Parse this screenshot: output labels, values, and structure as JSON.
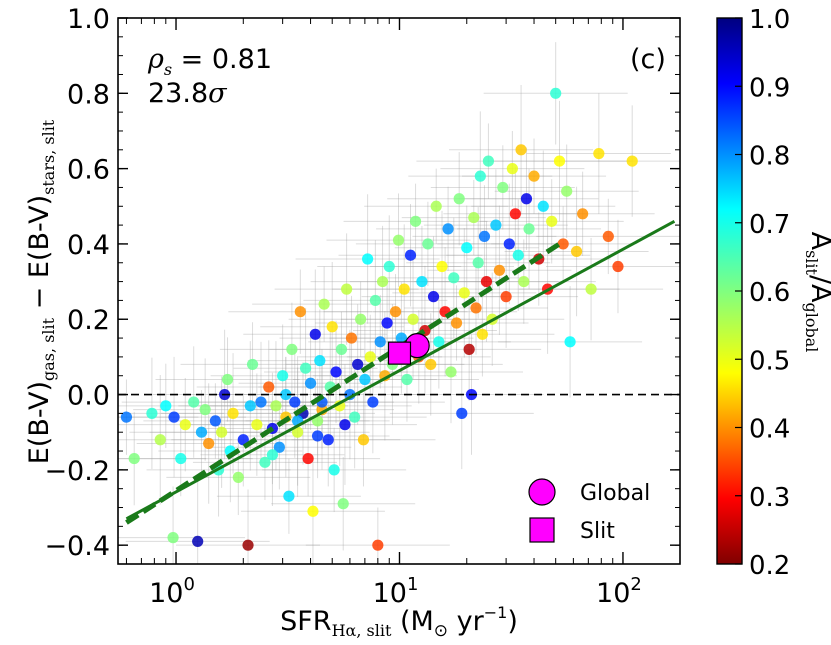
{
  "chart_data": {
    "type": "scatter",
    "panel_label": "(c)",
    "xscale": "log",
    "xlim": [
      0.55,
      180
    ],
    "ylim": [
      -0.45,
      1.0
    ],
    "xticks": [
      1,
      10,
      100
    ],
    "xtick_labels": [
      {
        "base": "10",
        "exp": "0"
      },
      {
        "base": "10",
        "exp": "1"
      },
      {
        "base": "10",
        "exp": "2"
      }
    ],
    "yticks": [
      "−0.4",
      "−0.2",
      "0.0",
      "0.2",
      "0.4",
      "0.6",
      "0.8",
      "1.0"
    ],
    "ytick_values": [
      -0.4,
      -0.2,
      0.0,
      0.2,
      0.4,
      0.6,
      0.8,
      1.0
    ],
    "xlabel": {
      "main": "SFR",
      "sub": "Hα, slit",
      "units": " (M",
      "sun": "⊙",
      "units2": " yr",
      "exp": "−1",
      "close": ")"
    },
    "ylabel": {
      "p1": "E(B-V)",
      "s1": "gas, slit",
      "p2": " − E(B-V)",
      "s2": "stars, slit"
    },
    "colorbar": {
      "label_main": "A",
      "label_sub1": "slit",
      "label_mid": "/A",
      "label_sub2": "global",
      "range": [
        0.2,
        1.0
      ],
      "ticks": [
        "0.2",
        "0.3",
        "0.4",
        "0.5",
        "0.6",
        "0.7",
        "0.8",
        "0.9",
        "1.0"
      ],
      "tick_values": [
        0.2,
        0.3,
        0.4,
        0.5,
        0.6,
        0.7,
        0.8,
        0.9,
        1.0
      ],
      "colormap": "jet"
    },
    "annotations": {
      "rho_symbol": "ρ",
      "rho_sub": "s",
      "rho_value": " = 0.81",
      "sigma_value": "23.8",
      "sigma_symbol": "σ"
    },
    "zero_line": 0.0,
    "fit_solid": {
      "x": [
        0.6,
        170
      ],
      "y": [
        -0.33,
        0.46
      ],
      "color": "#1a7a1a"
    },
    "fit_dashed": {
      "x": [
        0.6,
        52
      ],
      "y": [
        -0.34,
        0.4
      ],
      "color": "#1a7a1a"
    },
    "legend": [
      {
        "marker": "circle",
        "label": "Global",
        "color": "#ff00ff"
      },
      {
        "marker": "square",
        "label": "Slit",
        "color": "#ff00ff"
      }
    ],
    "special_points": [
      {
        "name": "global",
        "x": 12,
        "y": 0.13,
        "marker": "circle",
        "color": "#ff00ff"
      },
      {
        "name": "slit",
        "x": 10,
        "y": 0.11,
        "marker": "square",
        "color": "#ff00ff"
      }
    ],
    "points": [
      {
        "x": 0.6,
        "y": -0.06,
        "c": 0.82
      },
      {
        "x": 0.65,
        "y": -0.17,
        "c": 0.6
      },
      {
        "x": 0.78,
        "y": -0.05,
        "c": 0.68
      },
      {
        "x": 0.85,
        "y": -0.12,
        "c": 0.55
      },
      {
        "x": 0.9,
        "y": -0.03,
        "c": 0.72
      },
      {
        "x": 0.97,
        "y": -0.38,
        "c": 0.6
      },
      {
        "x": 0.98,
        "y": -0.06,
        "c": 0.86
      },
      {
        "x": 1.05,
        "y": -0.17,
        "c": 0.7
      },
      {
        "x": 1.1,
        "y": -0.08,
        "c": 0.5
      },
      {
        "x": 1.2,
        "y": -0.02,
        "c": 0.64
      },
      {
        "x": 1.25,
        "y": -0.39,
        "c": 0.96
      },
      {
        "x": 1.3,
        "y": -0.1,
        "c": 0.78
      },
      {
        "x": 1.35,
        "y": -0.04,
        "c": 0.6
      },
      {
        "x": 1.4,
        "y": -0.13,
        "c": 0.4
      },
      {
        "x": 1.5,
        "y": -0.07,
        "c": 0.84
      },
      {
        "x": 1.55,
        "y": -0.2,
        "c": 0.68
      },
      {
        "x": 1.6,
        "y": -0.1,
        "c": 0.52
      },
      {
        "x": 1.65,
        "y": 0.0,
        "c": 0.94
      },
      {
        "x": 1.7,
        "y": 0.04,
        "c": 0.6
      },
      {
        "x": 1.75,
        "y": -0.15,
        "c": 0.72
      },
      {
        "x": 1.8,
        "y": -0.05,
        "c": 0.46
      },
      {
        "x": 1.9,
        "y": -0.22,
        "c": 0.58
      },
      {
        "x": 2.0,
        "y": -0.12,
        "c": 0.88
      },
      {
        "x": 2.1,
        "y": -0.4,
        "c": 0.22
      },
      {
        "x": 2.15,
        "y": -0.03,
        "c": 0.76
      },
      {
        "x": 2.2,
        "y": 0.08,
        "c": 0.62
      },
      {
        "x": 2.3,
        "y": -0.08,
        "c": 0.5
      },
      {
        "x": 2.4,
        "y": -0.02,
        "c": 0.82
      },
      {
        "x": 2.5,
        "y": -0.18,
        "c": 0.66
      },
      {
        "x": 2.6,
        "y": 0.02,
        "c": 0.36
      },
      {
        "x": 2.7,
        "y": -0.09,
        "c": 0.92
      },
      {
        "x": 2.8,
        "y": -0.03,
        "c": 0.56
      },
      {
        "x": 2.9,
        "y": -0.14,
        "c": 0.8
      },
      {
        "x": 3.0,
        "y": 0.05,
        "c": 0.7
      },
      {
        "x": 3.1,
        "y": -0.06,
        "c": 0.44
      },
      {
        "x": 3.2,
        "y": -0.27,
        "c": 0.74
      },
      {
        "x": 3.3,
        "y": 0.12,
        "c": 0.6
      },
      {
        "x": 3.4,
        "y": -0.02,
        "c": 0.86
      },
      {
        "x": 3.5,
        "y": -0.1,
        "c": 0.52
      },
      {
        "x": 3.6,
        "y": 0.22,
        "c": 0.4
      },
      {
        "x": 3.7,
        "y": -0.05,
        "c": 0.96
      },
      {
        "x": 3.8,
        "y": 0.07,
        "c": 0.66
      },
      {
        "x": 3.9,
        "y": -0.17,
        "c": 0.3
      },
      {
        "x": 4.0,
        "y": 0.03,
        "c": 0.8
      },
      {
        "x": 4.1,
        "y": -0.31,
        "c": 0.48
      },
      {
        "x": 4.2,
        "y": 0.16,
        "c": 0.92
      },
      {
        "x": 4.3,
        "y": -0.07,
        "c": 0.58
      },
      {
        "x": 4.4,
        "y": 0.09,
        "c": 0.74
      },
      {
        "x": 4.5,
        "y": -0.04,
        "c": 0.42
      },
      {
        "x": 4.6,
        "y": 0.24,
        "c": 0.56
      },
      {
        "x": 4.8,
        "y": -0.12,
        "c": 0.88
      },
      {
        "x": 4.9,
        "y": 0.02,
        "c": 0.64
      },
      {
        "x": 5.0,
        "y": 0.18,
        "c": 0.46
      },
      {
        "x": 5.1,
        "y": -0.2,
        "c": 0.7
      },
      {
        "x": 5.2,
        "y": 0.06,
        "c": 0.9
      },
      {
        "x": 5.4,
        "y": -0.03,
        "c": 0.5
      },
      {
        "x": 5.5,
        "y": 0.12,
        "c": 0.62
      },
      {
        "x": 5.6,
        "y": -0.29,
        "c": 0.6
      },
      {
        "x": 5.8,
        "y": 0.28,
        "c": 0.54
      },
      {
        "x": 6.0,
        "y": 0.0,
        "c": 0.82
      },
      {
        "x": 6.1,
        "y": 0.15,
        "c": 0.38
      },
      {
        "x": 6.3,
        "y": -0.06,
        "c": 0.66
      },
      {
        "x": 6.5,
        "y": 0.08,
        "c": 0.94
      },
      {
        "x": 6.7,
        "y": 0.2,
        "c": 0.58
      },
      {
        "x": 6.9,
        "y": -0.12,
        "c": 0.44
      },
      {
        "x": 7.0,
        "y": 0.04,
        "c": 0.76
      },
      {
        "x": 7.2,
        "y": 0.36,
        "c": 0.72
      },
      {
        "x": 7.4,
        "y": 0.1,
        "c": 0.5
      },
      {
        "x": 7.6,
        "y": -0.02,
        "c": 0.86
      },
      {
        "x": 7.8,
        "y": 0.25,
        "c": 0.64
      },
      {
        "x": 8.0,
        "y": -0.4,
        "c": 0.34
      },
      {
        "x": 8.2,
        "y": 0.14,
        "c": 0.8
      },
      {
        "x": 8.4,
        "y": 0.3,
        "c": 0.56
      },
      {
        "x": 8.6,
        "y": 0.05,
        "c": 0.42
      },
      {
        "x": 8.8,
        "y": 0.19,
        "c": 0.9
      },
      {
        "x": 9.0,
        "y": 0.34,
        "c": 0.68
      },
      {
        "x": 9.3,
        "y": 0.08,
        "c": 0.6
      },
      {
        "x": 9.6,
        "y": 0.22,
        "c": 0.4
      },
      {
        "x": 9.9,
        "y": 0.41,
        "c": 0.58
      },
      {
        "x": 10.2,
        "y": 0.15,
        "c": 0.78
      },
      {
        "x": 10.5,
        "y": 0.28,
        "c": 0.46
      },
      {
        "x": 10.8,
        "y": 0.04,
        "c": 0.64
      },
      {
        "x": 11.2,
        "y": 0.37,
        "c": 0.88
      },
      {
        "x": 11.5,
        "y": 0.2,
        "c": 0.52
      },
      {
        "x": 11.8,
        "y": 0.46,
        "c": 0.6
      },
      {
        "x": 12.2,
        "y": 0.1,
        "c": 0.36
      },
      {
        "x": 12.6,
        "y": 0.3,
        "c": 0.74
      },
      {
        "x": 13.0,
        "y": 0.17,
        "c": 0.26
      },
      {
        "x": 13.4,
        "y": 0.4,
        "c": 0.62
      },
      {
        "x": 13.8,
        "y": 0.08,
        "c": 0.44
      },
      {
        "x": 14.2,
        "y": 0.26,
        "c": 0.92
      },
      {
        "x": 14.6,
        "y": 0.5,
        "c": 0.56
      },
      {
        "x": 15.0,
        "y": 0.14,
        "c": 0.7
      },
      {
        "x": 15.5,
        "y": 0.34,
        "c": 0.48
      },
      {
        "x": 16.0,
        "y": 0.22,
        "c": 0.3
      },
      {
        "x": 16.5,
        "y": 0.44,
        "c": 0.8
      },
      {
        "x": 17.0,
        "y": 0.06,
        "c": 0.58
      },
      {
        "x": 17.5,
        "y": 0.31,
        "c": 0.66
      },
      {
        "x": 18.0,
        "y": 0.19,
        "c": 0.4
      },
      {
        "x": 18.5,
        "y": 0.52,
        "c": 0.6
      },
      {
        "x": 19.0,
        "y": -0.05,
        "c": 0.86
      },
      {
        "x": 19.5,
        "y": 0.27,
        "c": 0.5
      },
      {
        "x": 20.0,
        "y": 0.39,
        "c": 0.72
      },
      {
        "x": 20.5,
        "y": 0.12,
        "c": 0.24
      },
      {
        "x": 21.0,
        "y": 0.0,
        "c": 0.9
      },
      {
        "x": 21.5,
        "y": 0.47,
        "c": 0.56
      },
      {
        "x": 22.0,
        "y": 0.23,
        "c": 0.38
      },
      {
        "x": 22.5,
        "y": 0.35,
        "c": 0.64
      },
      {
        "x": 23.0,
        "y": 0.58,
        "c": 0.68
      },
      {
        "x": 23.5,
        "y": 0.16,
        "c": 0.46
      },
      {
        "x": 24.0,
        "y": 0.42,
        "c": 0.82
      },
      {
        "x": 24.5,
        "y": 0.3,
        "c": 0.28
      },
      {
        "x": 25.0,
        "y": 0.62,
        "c": 0.66
      },
      {
        "x": 26.0,
        "y": 0.2,
        "c": 0.52
      },
      {
        "x": 27.0,
        "y": 0.45,
        "c": 0.76
      },
      {
        "x": 28.0,
        "y": 0.33,
        "c": 0.4
      },
      {
        "x": 29.0,
        "y": 0.55,
        "c": 0.6
      },
      {
        "x": 30.0,
        "y": 0.26,
        "c": 0.34
      },
      {
        "x": 31.0,
        "y": 0.4,
        "c": 0.88
      },
      {
        "x": 32.0,
        "y": 0.6,
        "c": 0.5
      },
      {
        "x": 33.0,
        "y": 0.48,
        "c": 0.3
      },
      {
        "x": 34.0,
        "y": 0.37,
        "c": 0.7
      },
      {
        "x": 35.0,
        "y": 0.65,
        "c": 0.44
      },
      {
        "x": 36.0,
        "y": 0.3,
        "c": 0.56
      },
      {
        "x": 37.0,
        "y": 0.52,
        "c": 0.92
      },
      {
        "x": 38.0,
        "y": 0.44,
        "c": 0.62
      },
      {
        "x": 40.0,
        "y": 0.58,
        "c": 0.42
      },
      {
        "x": 42.0,
        "y": 0.36,
        "c": 0.26
      },
      {
        "x": 44.0,
        "y": 0.5,
        "c": 0.74
      },
      {
        "x": 46.0,
        "y": 0.28,
        "c": 0.3
      },
      {
        "x": 48.0,
        "y": 0.46,
        "c": 0.5
      },
      {
        "x": 50.0,
        "y": 0.8,
        "c": 0.68
      },
      {
        "x": 52.0,
        "y": 0.62,
        "c": 0.48
      },
      {
        "x": 54.0,
        "y": 0.4,
        "c": 0.36
      },
      {
        "x": 56.0,
        "y": 0.54,
        "c": 0.58
      },
      {
        "x": 58.0,
        "y": 0.14,
        "c": 0.72
      },
      {
        "x": 62.0,
        "y": 0.38,
        "c": 0.44
      },
      {
        "x": 66.0,
        "y": 0.48,
        "c": 0.4
      },
      {
        "x": 72.0,
        "y": 0.28,
        "c": 0.54
      },
      {
        "x": 78.0,
        "y": 0.64,
        "c": 0.46
      },
      {
        "x": 86.0,
        "y": 0.42,
        "c": 0.36
      },
      {
        "x": 95.0,
        "y": 0.34,
        "c": 0.34
      },
      {
        "x": 110.0,
        "y": 0.62,
        "c": 0.46
      },
      {
        "x": 3.5,
        "y": -0.07,
        "c": 0.78
      },
      {
        "x": 4.3,
        "y": -0.11,
        "c": 0.86
      },
      {
        "x": 2.7,
        "y": -0.16,
        "c": 0.68
      },
      {
        "x": 5.7,
        "y": -0.08,
        "c": 0.92
      },
      {
        "x": 3.1,
        "y": 0.0,
        "c": 0.76
      },
      {
        "x": 4.5,
        "y": -0.02,
        "c": 0.84
      }
    ]
  }
}
